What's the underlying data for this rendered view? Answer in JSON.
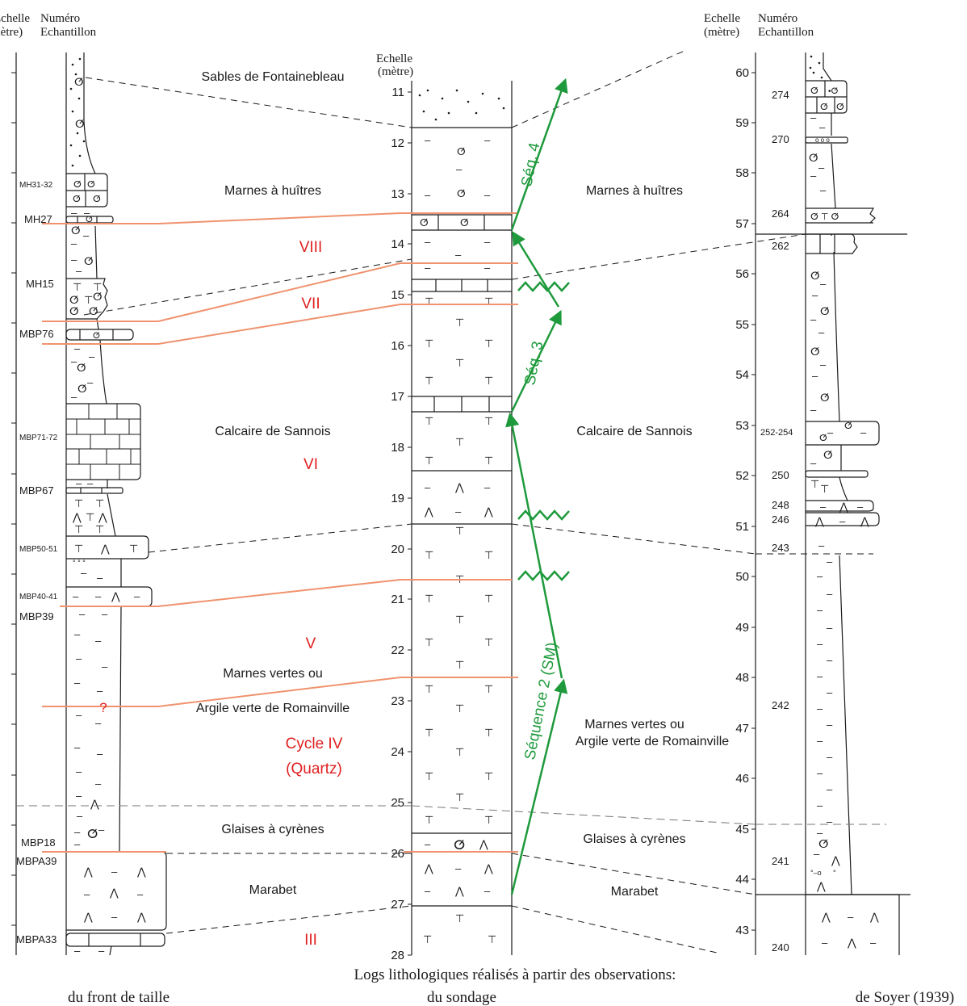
{
  "header": {
    "left_scale": [
      "Echelle",
      "(mètre)"
    ],
    "left_sample": [
      "Numéro",
      "Echantillon"
    ],
    "center_scale": [
      "Echelle",
      "(mètre)"
    ],
    "right_scale": [
      "Echelle",
      "(mètre)"
    ],
    "right_sample": [
      "Numéro",
      "Echantillon"
    ]
  },
  "footer": {
    "main": "Logs lithologiques réalisés à partir des observations:",
    "left": "du front de taille",
    "center": "du sondage",
    "right": "de Soyer (1939)"
  },
  "formations_left": {
    "sables": "Sables de Fontainebleau",
    "marnes_huitres": "Marnes à huîtres",
    "sannois": "Calcaire de Sannois",
    "marnes_vertes_1": "Marnes vertes ou",
    "marnes_vertes_2": "Argile verte de Romainville",
    "glaises": "Glaises à cyrènes",
    "marabet": "Marabet"
  },
  "formations_right": {
    "marnes_huitres": "Marnes à huîtres",
    "sannois": "Calcaire de Sannois",
    "marnes_vertes_1": "Marnes vertes ou",
    "marnes_vertes_2": "Argile verte de Romainville",
    "glaises": "Glaises à cyrènes",
    "marabet": "Marabet"
  },
  "cycles": {
    "viii": "VIII",
    "vii": "VII",
    "vi": "VI",
    "v": "V",
    "iv_1": "Cycle IV",
    "iv_2": "(Quartz)",
    "iii": "III",
    "question": "?"
  },
  "sequences": {
    "seq4": "Séq. 4",
    "seq3": "Séq. 3",
    "seq2": "Séquence 2 (SM)"
  },
  "samples_left": {
    "mh3132": "MH31-32",
    "mh27": "MH27",
    "mh15": "MH15",
    "mbp76": "MBP76",
    "mbp7172": "MBP71-72",
    "mbp67": "MBP67",
    "mbp5051": "MBP50-51",
    "mbp4041": "MBP40-41",
    "mbp39": "MBP39",
    "mbp18": "MBP18",
    "mbpa39": "MBPA39",
    "mbpa33": "MBPA33"
  },
  "samples_right": {
    "s274": "274",
    "s270": "270",
    "s264": "264",
    "s262": "262",
    "s252": "252-254",
    "s250": "250",
    "s248": "248",
    "s246": "246",
    "s243": "243",
    "s242": "242",
    "s241": "241",
    "s240": "240"
  },
  "center_ticks": [
    "11",
    "12",
    "13",
    "14",
    "15",
    "16",
    "17",
    "18",
    "19",
    "20",
    "21",
    "22",
    "23",
    "24",
    "25",
    "26",
    "27",
    "28"
  ],
  "right_ticks": [
    "60",
    "59",
    "58",
    "57",
    "56",
    "55",
    "54",
    "53",
    "52",
    "51",
    "50",
    "49",
    "48",
    "47",
    "46",
    "45",
    "44",
    "43"
  ],
  "colors": {
    "ink": "#1a1a1a",
    "cycle_red": "#e02020",
    "correlation_orange": "#f0926e",
    "sequence_green": "#1e9a3c",
    "dashed_gray": "#777777"
  }
}
